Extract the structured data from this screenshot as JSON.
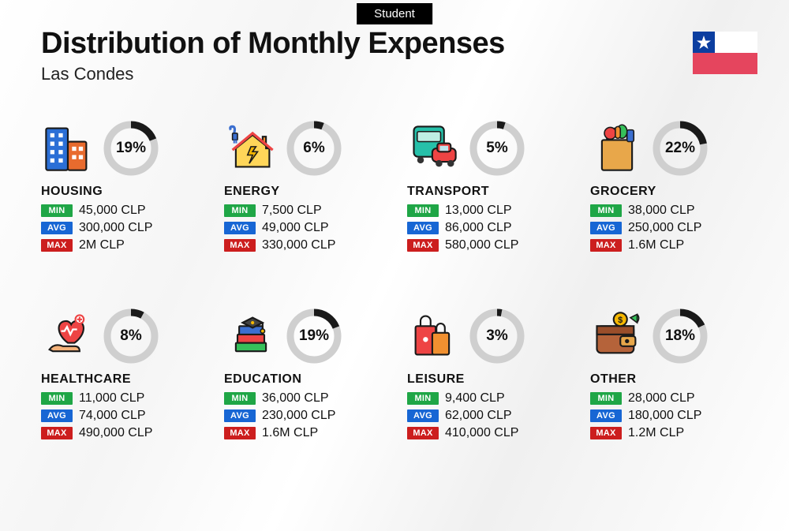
{
  "badge": "Student",
  "title": "Distribution of Monthly Expenses",
  "location": "Las Condes",
  "labels": {
    "min": "MIN",
    "avg": "AVG",
    "max": "MAX"
  },
  "colors": {
    "min": "#1fa646",
    "avg": "#1766d4",
    "max": "#cc1e1e",
    "ring_bg": "#cfcfcf",
    "ring_fg": "#1a1a1a"
  },
  "flag": {
    "blue": "#0c3ea0",
    "red": "#e5455e",
    "white": "#ffffff"
  },
  "categories": [
    {
      "key": "housing",
      "name": "HOUSING",
      "pct": 19,
      "pct_label": "19%",
      "min": "45,000 CLP",
      "avg": "300,000 CLP",
      "max": "2M CLP",
      "icon": "buildings"
    },
    {
      "key": "energy",
      "name": "ENERGY",
      "pct": 6,
      "pct_label": "6%",
      "min": "7,500 CLP",
      "avg": "49,000 CLP",
      "max": "330,000 CLP",
      "icon": "house-bolt"
    },
    {
      "key": "transport",
      "name": "TRANSPORT",
      "pct": 5,
      "pct_label": "5%",
      "min": "13,000 CLP",
      "avg": "86,000 CLP",
      "max": "580,000 CLP",
      "icon": "bus-car"
    },
    {
      "key": "grocery",
      "name": "GROCERY",
      "pct": 22,
      "pct_label": "22%",
      "min": "38,000 CLP",
      "avg": "250,000 CLP",
      "max": "1.6M CLP",
      "icon": "grocery-bag"
    },
    {
      "key": "healthcare",
      "name": "HEALTHCARE",
      "pct": 8,
      "pct_label": "8%",
      "min": "11,000 CLP",
      "avg": "74,000 CLP",
      "max": "490,000 CLP",
      "icon": "heart-hand"
    },
    {
      "key": "education",
      "name": "EDUCATION",
      "pct": 19,
      "pct_label": "19%",
      "min": "36,000 CLP",
      "avg": "230,000 CLP",
      "max": "1.6M CLP",
      "icon": "grad-books"
    },
    {
      "key": "leisure",
      "name": "LEISURE",
      "pct": 3,
      "pct_label": "3%",
      "min": "9,400 CLP",
      "avg": "62,000 CLP",
      "max": "410,000 CLP",
      "icon": "shopping-bags"
    },
    {
      "key": "other",
      "name": "OTHER",
      "pct": 18,
      "pct_label": "18%",
      "min": "28,000 CLP",
      "avg": "180,000 CLP",
      "max": "1.2M CLP",
      "icon": "wallet"
    }
  ]
}
